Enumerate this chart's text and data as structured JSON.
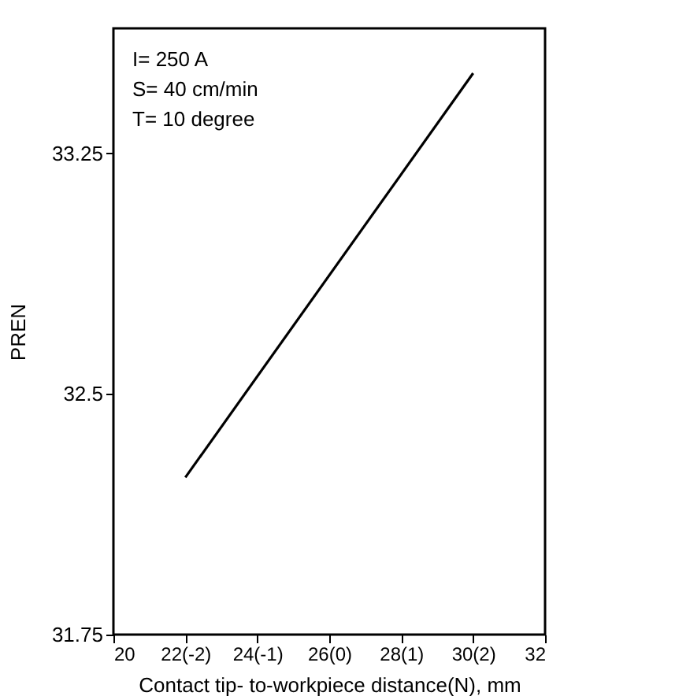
{
  "chart_data": {
    "type": "line",
    "xlabel": "Contact tip- to-workpiece distance(N), mm",
    "ylabel": "PREN",
    "x": [
      22,
      30
    ],
    "series": [
      {
        "color": "#000000",
        "values": [
          32.24,
          33.5
        ]
      }
    ],
    "xlim": [
      20,
      32
    ],
    "xticks": [
      20,
      {
        "value": 22,
        "label": "22(-2)"
      },
      {
        "value": 24,
        "label": "24(-1)"
      },
      {
        "value": 26,
        "label": "26(0)"
      },
      {
        "value": 28,
        "label": "28(1)"
      },
      {
        "value": 30,
        "label": "30(2)"
      },
      32
    ],
    "ylim": [
      31.75,
      33.64
    ],
    "yticks": [
      31.75,
      32.5,
      33.25
    ],
    "annotations": [
      "I= 250 A",
      "S= 40 cm/min",
      "T= 10 degree"
    ],
    "grid": false,
    "marker": "none",
    "line_style": "solid"
  }
}
